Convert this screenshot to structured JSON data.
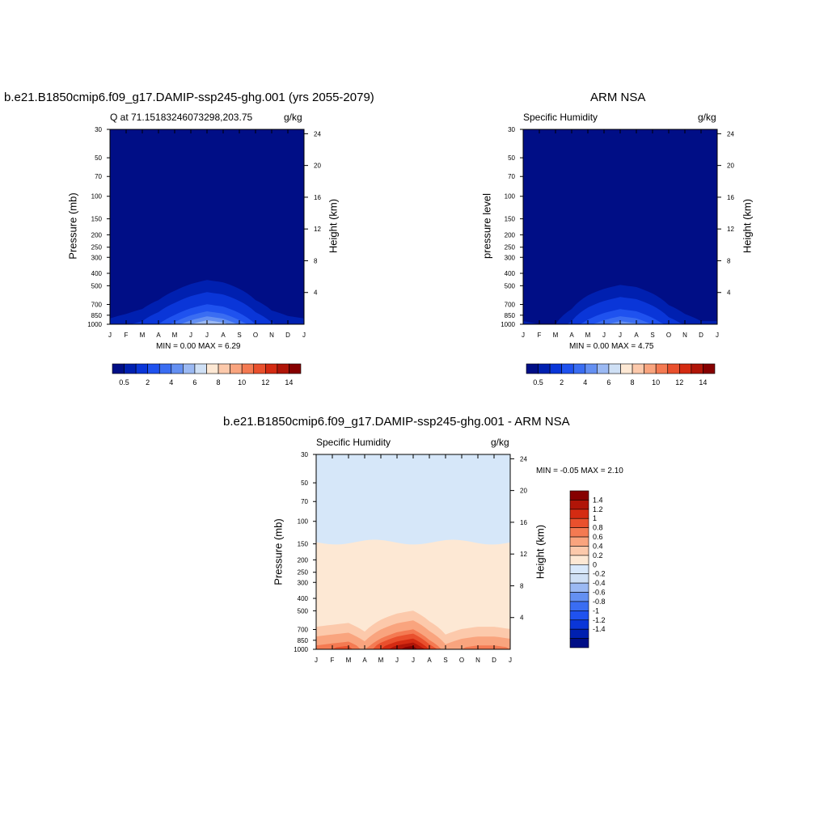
{
  "panels": [
    {
      "title": "b.e21.B1850cmip6.f09_g17.DAMIP-ssp245-ghg.001 (yrs 2055-2079)",
      "subtitle_left": "Q at 71.15183246073298,203.75",
      "subtitle_right": "g/kg",
      "ylabel_left": "Pressure (mb)",
      "ylabel_right": "Height (km)",
      "stats": "MIN =   0.00 MAX =   6.29"
    },
    {
      "title": "ARM NSA",
      "subtitle_left": "Specific Humidity",
      "subtitle_right": "g/kg",
      "ylabel_left": "pressure level",
      "ylabel_right": "Height (km)",
      "stats": "MIN =   0.00 MAX =  4.75"
    },
    {
      "title": "b.e21.B1850cmip6.f09_g17.DAMIP-ssp245-ghg.001 - ARM NSA",
      "subtitle_left": "Specific Humidity",
      "subtitle_right": "g/kg",
      "ylabel_left": "Pressure (mb)",
      "ylabel_right": "Height (km)",
      "stats": "MIN =  -0.05 MAX =   2.10"
    }
  ],
  "colors": {
    "abs_levels": [
      "#000e86",
      "#0020b0",
      "#0a36d8",
      "#1f52ef",
      "#3a6df2",
      "#6490f2",
      "#9bb9f3",
      "#cfe0f5",
      "#fde8d4",
      "#fcc9ab",
      "#f9a47e",
      "#f47a52",
      "#e9502d",
      "#d42b12",
      "#b01508",
      "#860000"
    ],
    "diff_levels": [
      "#000e86",
      "#0020b0",
      "#0a36d8",
      "#1f52ef",
      "#3a6df2",
      "#6490f2",
      "#9bb9f3",
      "#cfe0f5",
      "#d8e8fb",
      "#fde8d4",
      "#fcc9ab",
      "#f9a47e",
      "#f47a52",
      "#e9502d",
      "#d42b12",
      "#b01508",
      "#860000"
    ]
  },
  "chart_data": [
    {
      "type": "heatmap",
      "title": "b.e21.B1850cmip6.f09_g17.DAMIP-ssp245-ghg.001 (yrs 2055-2079)",
      "x_ticks": [
        "J",
        "F",
        "M",
        "A",
        "M",
        "J",
        "J",
        "A",
        "S",
        "O",
        "N",
        "D",
        "J"
      ],
      "y_ticks_pressure": [
        30,
        50,
        70,
        100,
        150,
        200,
        250,
        300,
        400,
        500,
        700,
        850,
        1000
      ],
      "y_ticks_height": [
        4,
        8,
        12,
        16,
        20,
        24
      ],
      "colorbar_labels": [
        "0.5",
        "2",
        "4",
        "6",
        "8",
        "10",
        "12",
        "14"
      ],
      "min": 0.0,
      "max": 6.29,
      "profile_months": [
        0,
        1,
        2,
        3,
        4,
        5,
        6,
        7,
        8,
        9,
        10,
        11,
        12
      ],
      "profile_peak": [
        0.7,
        0.9,
        1.2,
        2.0,
        3.4,
        5.0,
        6.29,
        5.5,
        3.8,
        2.0,
        1.1,
        0.8,
        0.7
      ]
    },
    {
      "type": "heatmap",
      "title": "ARM NSA",
      "x_ticks": [
        "J",
        "F",
        "M",
        "A",
        "M",
        "J",
        "J",
        "A",
        "S",
        "O",
        "N",
        "D",
        "J"
      ],
      "y_ticks_pressure": [
        30,
        50,
        70,
        100,
        150,
        200,
        250,
        300,
        400,
        500,
        700,
        850,
        1000
      ],
      "y_ticks_height": [
        4,
        8,
        12,
        16,
        20,
        24
      ],
      "colorbar_labels": [
        "0.5",
        "2",
        "4",
        "6",
        "8",
        "10",
        "12",
        "14"
      ],
      "min": 0.0,
      "max": 4.75,
      "profile_months": [
        0,
        1,
        2,
        3,
        4,
        5,
        6,
        7,
        8,
        9,
        10,
        11,
        12
      ],
      "profile_peak": [
        0.6,
        0.5,
        0.5,
        1.2,
        2.6,
        3.8,
        4.75,
        4.2,
        2.9,
        1.5,
        0.9,
        0.6,
        0.6
      ]
    },
    {
      "type": "heatmap",
      "title": "b.e21.B1850cmip6.f09_g17.DAMIP-ssp245-ghg.001 - ARM NSA",
      "x_ticks": [
        "J",
        "F",
        "M",
        "A",
        "M",
        "J",
        "J",
        "A",
        "S",
        "O",
        "N",
        "D",
        "J"
      ],
      "y_ticks_pressure": [
        30,
        50,
        70,
        100,
        150,
        200,
        250,
        300,
        400,
        500,
        700,
        850,
        1000
      ],
      "y_ticks_height": [
        4,
        8,
        12,
        16,
        20,
        24
      ],
      "colorbar_labels": [
        "1.4",
        "1.2",
        "1",
        "0.8",
        "0.6",
        "0.4",
        "0.2",
        "0",
        "-0.2",
        "-0.4",
        "-0.6",
        "-0.8",
        "-1",
        "-1.2",
        "-1.4"
      ],
      "min": -0.05,
      "max": 2.1,
      "profile_months": [
        0,
        1,
        2,
        3,
        4,
        5,
        6,
        7,
        8,
        9,
        10,
        11,
        12
      ],
      "profile_peak": [
        0.9,
        1.0,
        1.1,
        0.7,
        1.3,
        1.8,
        2.1,
        1.2,
        0.6,
        0.8,
        0.9,
        0.9,
        0.8
      ]
    }
  ]
}
